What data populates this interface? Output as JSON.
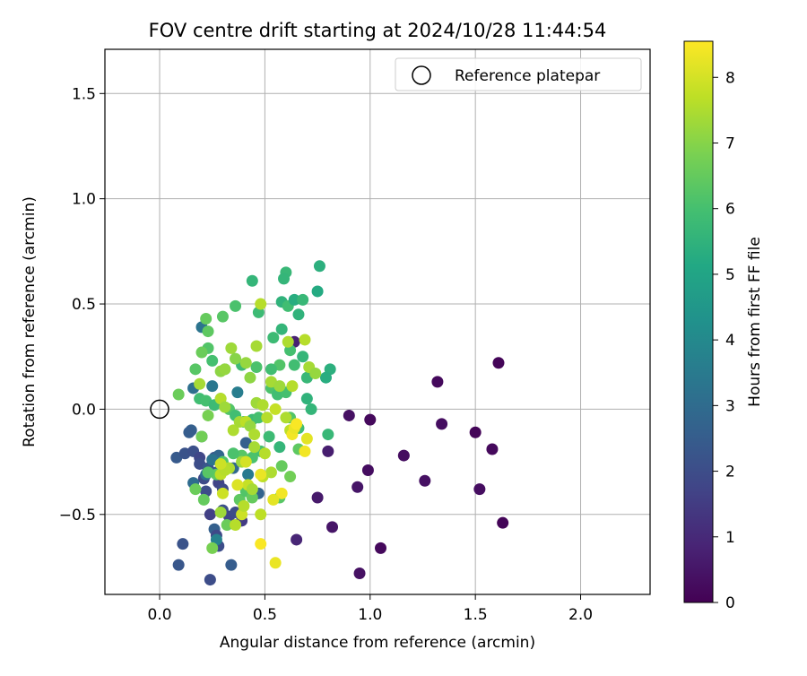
{
  "chart_data": {
    "type": "scatter",
    "title": "FOV centre drift starting at 2024/10/28 11:44:54",
    "xlabel": "Angular distance from reference (arcmin)",
    "ylabel": "Rotation from reference (arcmin)",
    "xlim": [
      -0.26,
      2.33
    ],
    "ylim": [
      -0.88,
      1.71
    ],
    "xticks": [
      0.0,
      0.5,
      1.0,
      1.5,
      2.0
    ],
    "xtick_labels": [
      "0.0",
      "0.5",
      "1.0",
      "1.5",
      "2.0"
    ],
    "yticks": [
      -0.5,
      0.0,
      0.5,
      1.0,
      1.5
    ],
    "ytick_labels": [
      "−0.5",
      "0.0",
      "0.5",
      "1.0",
      "1.5"
    ],
    "grid": true,
    "legend": {
      "placement": "top-right",
      "entries": [
        "Reference platepar"
      ]
    },
    "reference_point": {
      "x": 0.0,
      "y": 0.0,
      "label": "Reference platepar"
    },
    "colorbar": {
      "label": "Hours from first FF file",
      "colormap": "viridis",
      "range": [
        0,
        8.55
      ],
      "ticks": [
        0,
        1,
        2,
        3,
        4,
        5,
        6,
        7,
        8
      ],
      "tick_labels": [
        "0",
        "1",
        "2",
        "3",
        "4",
        "5",
        "6",
        "7",
        "8"
      ]
    },
    "points": [
      [
        1.61,
        0.22,
        0.1
      ],
      [
        1.32,
        0.13,
        0.2
      ],
      [
        1.34,
        -0.07,
        0.3
      ],
      [
        1.5,
        -0.11,
        0.1
      ],
      [
        1.58,
        -0.19,
        0.2
      ],
      [
        1.52,
        -0.38,
        0.3
      ],
      [
        1.63,
        -0.54,
        0.1
      ],
      [
        1.26,
        -0.34,
        0.4
      ],
      [
        1.16,
        -0.22,
        0.3
      ],
      [
        1.0,
        -0.05,
        0.2
      ],
      [
        0.9,
        -0.03,
        0.4
      ],
      [
        0.99,
        -0.29,
        0.3
      ],
      [
        0.94,
        -0.37,
        0.5
      ],
      [
        1.05,
        -0.66,
        0.2
      ],
      [
        0.95,
        -0.78,
        0.4
      ],
      [
        0.82,
        -0.56,
        0.5
      ],
      [
        0.75,
        -0.42,
        0.6
      ],
      [
        0.8,
        -0.2,
        0.7
      ],
      [
        0.65,
        -0.62,
        0.9
      ],
      [
        0.64,
        0.32,
        0.8
      ],
      [
        0.08,
        -0.23,
        2.4
      ],
      [
        0.12,
        -0.21,
        2.2
      ],
      [
        0.15,
        -0.1,
        2.6
      ],
      [
        0.14,
        -0.11,
        2.5
      ],
      [
        0.16,
        -0.2,
        2.1
      ],
      [
        0.19,
        -0.23,
        1.8
      ],
      [
        0.19,
        -0.26,
        2.0
      ],
      [
        0.21,
        -0.33,
        1.9
      ],
      [
        0.23,
        -0.28,
        2.3
      ],
      [
        0.26,
        -0.23,
        2.2
      ],
      [
        0.27,
        -0.3,
        2.4
      ],
      [
        0.28,
        -0.35,
        1.7
      ],
      [
        0.3,
        -0.38,
        1.9
      ],
      [
        0.22,
        -0.39,
        2.0
      ],
      [
        0.24,
        -0.5,
        1.6
      ],
      [
        0.3,
        -0.48,
        2.1
      ],
      [
        0.33,
        -0.51,
        1.8
      ],
      [
        0.36,
        -0.49,
        2.0
      ],
      [
        0.39,
        -0.53,
        1.5
      ],
      [
        0.26,
        -0.57,
        2.6
      ],
      [
        0.27,
        -0.6,
        1.9
      ],
      [
        0.28,
        -0.65,
        2.0
      ],
      [
        0.11,
        -0.64,
        2.2
      ],
      [
        0.09,
        -0.74,
        2.3
      ],
      [
        0.34,
        -0.74,
        2.5
      ],
      [
        0.24,
        -0.81,
        2.0
      ],
      [
        0.16,
        -0.35,
        3.0
      ],
      [
        0.22,
        -0.31,
        3.2
      ],
      [
        0.25,
        0.11,
        3.4
      ],
      [
        0.2,
        0.39,
        3.3
      ],
      [
        0.37,
        0.08,
        3.6
      ],
      [
        0.16,
        0.1,
        3.1
      ],
      [
        0.28,
        -0.22,
        2.8
      ],
      [
        0.35,
        -0.28,
        2.9
      ],
      [
        0.42,
        -0.31,
        3.5
      ],
      [
        0.47,
        -0.4,
        2.7
      ],
      [
        0.25,
        -0.24,
        3.3
      ],
      [
        0.41,
        -0.16,
        2.6
      ],
      [
        0.2,
        -0.13,
        2.9
      ],
      [
        0.27,
        -0.62,
        3.8
      ],
      [
        0.44,
        0.61,
        5.6
      ],
      [
        0.6,
        0.65,
        5.7
      ],
      [
        0.59,
        0.62,
        5.6
      ],
      [
        0.76,
        0.68,
        5.4
      ],
      [
        0.58,
        0.51,
        5.5
      ],
      [
        0.61,
        0.49,
        5.9
      ],
      [
        0.64,
        0.52,
        5.3
      ],
      [
        0.68,
        0.52,
        5.7
      ],
      [
        0.75,
        0.56,
        5.2
      ],
      [
        0.47,
        0.46,
        5.8
      ],
      [
        0.66,
        0.45,
        5.5
      ],
      [
        0.36,
        0.49,
        6.1
      ],
      [
        0.54,
        0.34,
        5.8
      ],
      [
        0.58,
        0.38,
        5.6
      ],
      [
        0.62,
        0.28,
        6.0
      ],
      [
        0.68,
        0.25,
        5.6
      ],
      [
        0.64,
        0.21,
        5.9
      ],
      [
        0.81,
        0.19,
        5.4
      ],
      [
        0.79,
        0.15,
        5.3
      ],
      [
        0.7,
        0.15,
        5.7
      ],
      [
        0.57,
        0.21,
        6.2
      ],
      [
        0.53,
        0.19,
        5.9
      ],
      [
        0.46,
        0.2,
        6.1
      ],
      [
        0.39,
        0.21,
        5.8
      ],
      [
        0.31,
        0.19,
        5.7
      ],
      [
        0.25,
        0.23,
        6.0
      ],
      [
        0.23,
        0.29,
        6.2
      ],
      [
        0.22,
        0.43,
        6.5
      ],
      [
        0.3,
        0.44,
        6.3
      ],
      [
        0.23,
        0.37,
        6.4
      ],
      [
        0.2,
        0.27,
        6.6
      ],
      [
        0.17,
        0.19,
        6.3
      ],
      [
        0.09,
        0.07,
        6.6
      ],
      [
        0.19,
        0.05,
        5.9
      ],
      [
        0.22,
        0.04,
        6.0
      ],
      [
        0.26,
        0.02,
        5.8
      ],
      [
        0.29,
        0.05,
        6.1
      ],
      [
        0.33,
        0.0,
        6.2
      ],
      [
        0.36,
        -0.03,
        5.9
      ],
      [
        0.4,
        -0.06,
        5.7
      ],
      [
        0.44,
        -0.05,
        5.8
      ],
      [
        0.47,
        -0.04,
        6.0
      ],
      [
        0.53,
        0.1,
        6.1
      ],
      [
        0.56,
        0.07,
        5.9
      ],
      [
        0.6,
        0.08,
        6.0
      ],
      [
        0.62,
        -0.04,
        6.2
      ],
      [
        0.66,
        -0.09,
        5.9
      ],
      [
        0.7,
        0.05,
        5.5
      ],
      [
        0.72,
        0.0,
        5.6
      ],
      [
        0.8,
        -0.12,
        5.7
      ],
      [
        0.57,
        -0.18,
        5.6
      ],
      [
        0.52,
        -0.13,
        5.8
      ],
      [
        0.48,
        -0.2,
        6.0
      ],
      [
        0.44,
        -0.23,
        6.1
      ],
      [
        0.39,
        -0.22,
        6.3
      ],
      [
        0.35,
        -0.21,
        6.1
      ],
      [
        0.3,
        -0.25,
        6.2
      ],
      [
        0.27,
        -0.31,
        6.4
      ],
      [
        0.23,
        -0.3,
        6.3
      ],
      [
        0.17,
        -0.38,
        6.6
      ],
      [
        0.21,
        -0.43,
        6.5
      ],
      [
        0.25,
        -0.66,
        6.8
      ],
      [
        0.57,
        -0.42,
        6.3
      ],
      [
        0.58,
        -0.27,
        6.5
      ],
      [
        0.66,
        -0.19,
        6.4
      ],
      [
        0.62,
        -0.32,
        6.7
      ],
      [
        0.38,
        -0.43,
        6.4
      ],
      [
        0.41,
        -0.39,
        6.2
      ],
      [
        0.44,
        -0.42,
        6.5
      ],
      [
        0.32,
        -0.55,
        6.6
      ],
      [
        0.2,
        -0.13,
        6.7
      ],
      [
        0.23,
        -0.03,
        6.8
      ],
      [
        0.29,
        0.18,
        7.1
      ],
      [
        0.31,
        0.19,
        7.2
      ],
      [
        0.34,
        0.29,
        7.3
      ],
      [
        0.36,
        0.24,
        7.0
      ],
      [
        0.41,
        0.22,
        7.2
      ],
      [
        0.46,
        0.3,
        7.4
      ],
      [
        0.48,
        0.5,
        7.6
      ],
      [
        0.43,
        0.15,
        7.1
      ],
      [
        0.46,
        0.03,
        7.3
      ],
      [
        0.49,
        0.02,
        7.5
      ],
      [
        0.53,
        0.13,
        7.4
      ],
      [
        0.57,
        0.11,
        7.3
      ],
      [
        0.63,
        0.11,
        7.6
      ],
      [
        0.61,
        0.32,
        7.5
      ],
      [
        0.69,
        0.33,
        7.6
      ],
      [
        0.71,
        0.2,
        7.4
      ],
      [
        0.74,
        0.17,
        7.2
      ],
      [
        0.19,
        0.12,
        7.4
      ],
      [
        0.29,
        0.05,
        7.6
      ],
      [
        0.31,
        0.01,
        7.3
      ],
      [
        0.35,
        -0.1,
        7.5
      ],
      [
        0.38,
        -0.06,
        7.4
      ],
      [
        0.41,
        -0.06,
        7.7
      ],
      [
        0.43,
        -0.08,
        7.2
      ],
      [
        0.45,
        -0.12,
        7.5
      ],
      [
        0.51,
        -0.04,
        7.6
      ],
      [
        0.55,
        0.0,
        7.8
      ],
      [
        0.6,
        -0.04,
        7.5
      ],
      [
        0.62,
        -0.1,
        7.7
      ],
      [
        0.45,
        -0.18,
        7.4
      ],
      [
        0.5,
        -0.21,
        7.6
      ],
      [
        0.39,
        -0.25,
        7.3
      ],
      [
        0.33,
        -0.28,
        7.5
      ],
      [
        0.29,
        -0.31,
        7.7
      ],
      [
        0.31,
        -0.29,
        7.6
      ],
      [
        0.42,
        -0.36,
        7.8
      ],
      [
        0.49,
        -0.32,
        7.7
      ],
      [
        0.53,
        -0.3,
        7.5
      ],
      [
        0.39,
        -0.5,
        7.9
      ],
      [
        0.4,
        -0.46,
        7.6
      ],
      [
        0.48,
        -0.5,
        7.7
      ],
      [
        0.44,
        -0.38,
        7.4
      ],
      [
        0.29,
        -0.49,
        7.3
      ],
      [
        0.3,
        -0.4,
        7.9
      ],
      [
        0.36,
        -0.55,
        7.6
      ],
      [
        0.58,
        -0.4,
        8.4
      ],
      [
        0.54,
        -0.43,
        8.2
      ],
      [
        0.48,
        -0.64,
        8.5
      ],
      [
        0.55,
        -0.73,
        8.3
      ],
      [
        0.63,
        -0.12,
        8.4
      ],
      [
        0.64,
        -0.09,
        8.3
      ],
      [
        0.65,
        -0.07,
        8.5
      ],
      [
        0.7,
        -0.14,
        8.2
      ],
      [
        0.69,
        -0.2,
        8.4
      ],
      [
        0.48,
        -0.31,
        8.3
      ],
      [
        0.37,
        -0.36,
        8.1
      ],
      [
        0.41,
        -0.25,
        8.0
      ],
      [
        0.29,
        -0.26,
        7.9
      ]
    ]
  }
}
